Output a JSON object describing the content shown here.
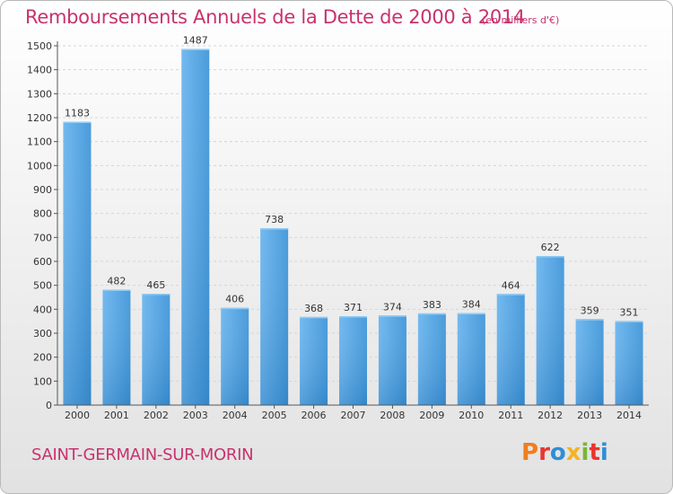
{
  "header": {
    "title": "Remboursements Annuels de la Dette de 2000 à 2014",
    "unit_note": "(en milliers d'€)"
  },
  "footer": {
    "commune": "SAINT-GERMAIN-SUR-MORIN",
    "logo_text": "Proxiti",
    "logo_colors": [
      "#f07d1e",
      "#e8362e",
      "#2f8fd6",
      "#f5b321",
      "#79b734",
      "#e8362e",
      "#2f8fd6"
    ]
  },
  "chart_data": {
    "type": "bar",
    "title": "Remboursements Annuels de la Dette de 2000 à 2014",
    "subtitle": "(en milliers d'€)",
    "categories": [
      "2000",
      "2001",
      "2002",
      "2003",
      "2004",
      "2005",
      "2006",
      "2007",
      "2008",
      "2009",
      "2010",
      "2011",
      "2012",
      "2013",
      "2014"
    ],
    "values": [
      1183,
      482,
      465,
      1487,
      406,
      738,
      368,
      371,
      374,
      383,
      384,
      464,
      622,
      359,
      351
    ],
    "xlabel": "",
    "ylabel": "",
    "ylim": [
      0,
      1500
    ],
    "yticks": [
      0,
      100,
      200,
      300,
      400,
      500,
      600,
      700,
      800,
      900,
      1000,
      1100,
      1200,
      1300,
      1400,
      1500
    ],
    "grid": true,
    "data_labels": true,
    "bar_color": "#3d97dc",
    "bar_color_light": "#6cb8f0"
  }
}
